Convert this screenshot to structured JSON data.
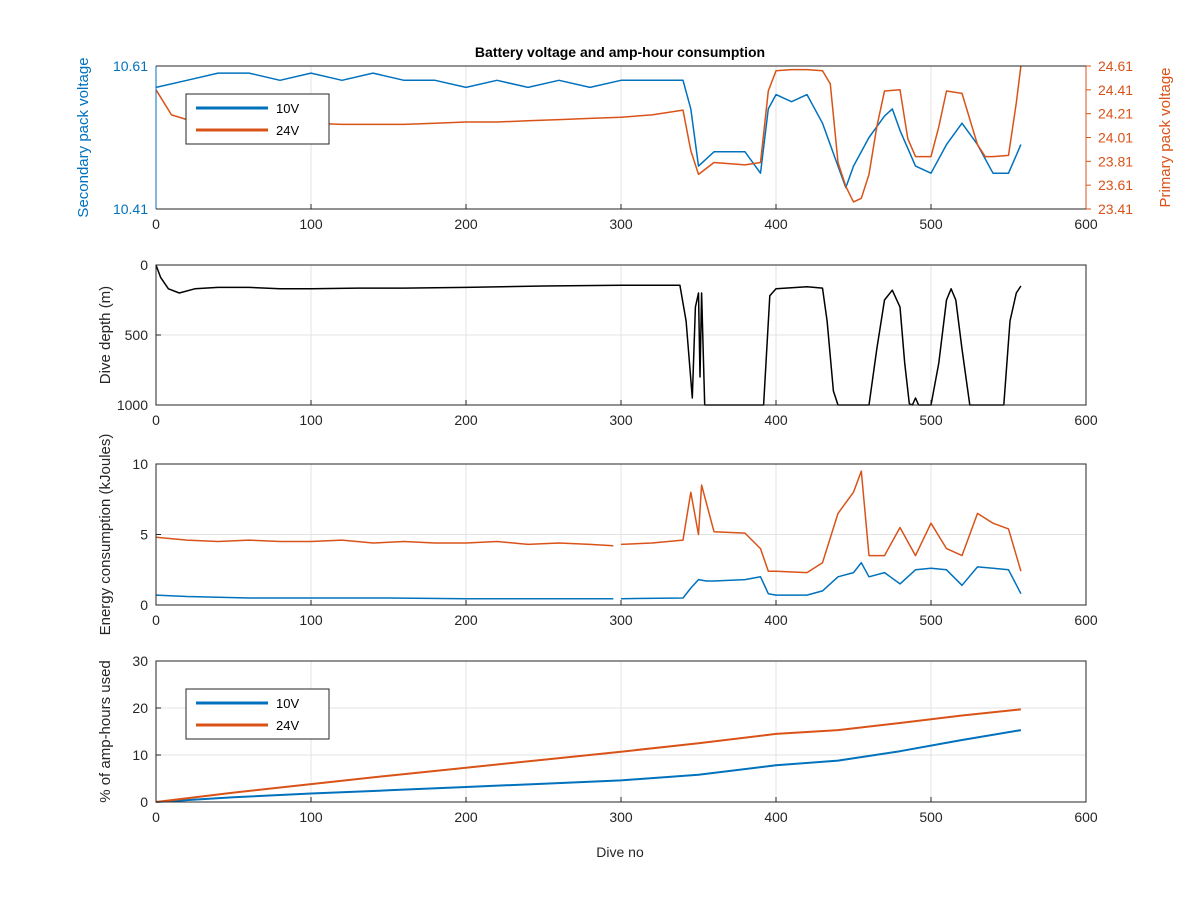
{
  "figure": {
    "title": "Battery voltage and amp-hour consumption",
    "xlabel": "Dive no"
  },
  "colors": {
    "blue": "#0072BD",
    "orange": "#D95319",
    "black": "#000000",
    "grid": "#e3e3e3"
  },
  "chart_data": [
    {
      "type": "line",
      "title": "Battery voltage and amp-hour consumption",
      "xlim": [
        0,
        600
      ],
      "xticks": [
        "0",
        "100",
        "200",
        "300",
        "400",
        "500",
        "600"
      ],
      "left_axis": {
        "label": "Secondary pack voltage",
        "ylim": [
          10.41,
          10.61
        ],
        "ticks": [
          "10.41",
          "10.61"
        ],
        "color": "#0072BD"
      },
      "right_axis": {
        "label": "Primary pack voltage",
        "ylim": [
          23.41,
          24.61
        ],
        "ticks": [
          "23.41",
          "23.61",
          "23.81",
          "24.01",
          "24.21",
          "24.41",
          "24.61"
        ],
        "color": "#D95319"
      },
      "legend": {
        "location": "top-left",
        "entries": [
          "10V",
          "24V"
        ]
      },
      "series": [
        {
          "name": "10V",
          "axis": "left",
          "color": "#0072BD",
          "x": [
            0,
            20,
            40,
            60,
            80,
            100,
            120,
            140,
            160,
            180,
            200,
            220,
            240,
            260,
            280,
            300,
            320,
            340,
            345,
            350,
            360,
            380,
            390,
            395,
            400,
            410,
            420,
            430,
            440,
            445,
            450,
            460,
            470,
            475,
            480,
            490,
            500,
            510,
            520,
            530,
            540,
            550,
            558
          ],
          "y": [
            10.58,
            10.59,
            10.6,
            10.6,
            10.59,
            10.6,
            10.59,
            10.6,
            10.59,
            10.59,
            10.58,
            10.59,
            10.58,
            10.59,
            10.58,
            10.59,
            10.59,
            10.59,
            10.55,
            10.47,
            10.49,
            10.49,
            10.46,
            10.55,
            10.57,
            10.56,
            10.57,
            10.53,
            10.47,
            10.44,
            10.47,
            10.51,
            10.54,
            10.55,
            10.52,
            10.47,
            10.46,
            10.5,
            10.53,
            10.5,
            10.46,
            10.46,
            10.5
          ]
        },
        {
          "name": "24V",
          "axis": "right",
          "color": "#D95319",
          "x": [
            0,
            10,
            20,
            40,
            60,
            80,
            100,
            120,
            140,
            160,
            180,
            200,
            220,
            240,
            260,
            280,
            300,
            320,
            340,
            345,
            350,
            360,
            380,
            390,
            395,
            400,
            410,
            420,
            430,
            435,
            440,
            445,
            450,
            455,
            460,
            465,
            470,
            480,
            485,
            490,
            500,
            505,
            510,
            520,
            530,
            535,
            540,
            550,
            555,
            558
          ],
          "y": [
            24.41,
            24.2,
            24.16,
            24.14,
            24.15,
            24.13,
            24.13,
            24.12,
            24.12,
            24.12,
            24.13,
            24.14,
            24.14,
            24.15,
            24.16,
            24.17,
            24.18,
            24.2,
            24.24,
            23.9,
            23.7,
            23.8,
            23.78,
            23.8,
            24.4,
            24.57,
            24.58,
            24.58,
            24.57,
            24.46,
            23.8,
            23.6,
            23.47,
            23.5,
            23.7,
            24.1,
            24.4,
            24.41,
            24.0,
            23.85,
            23.85,
            24.1,
            24.4,
            24.38,
            23.95,
            23.85,
            23.85,
            23.86,
            24.3,
            24.61
          ]
        }
      ]
    },
    {
      "type": "line",
      "ylabel": "Dive depth (m)",
      "xlim": [
        0,
        600
      ],
      "ylim": [
        0,
        1000
      ],
      "y_reversed": true,
      "xticks": [
        "0",
        "100",
        "200",
        "300",
        "400",
        "500",
        "600"
      ],
      "yticks": [
        "0",
        "500",
        "1000"
      ],
      "series": [
        {
          "color": "#000000",
          "x": [
            0,
            3,
            8,
            15,
            25,
            40,
            60,
            80,
            100,
            130,
            160,
            200,
            250,
            300,
            338,
            342,
            346,
            348,
            350,
            351,
            352,
            354,
            356,
            380,
            392,
            396,
            400,
            420,
            430,
            433,
            437,
            440,
            460,
            465,
            470,
            475,
            480,
            483,
            486,
            488,
            490,
            492,
            500,
            505,
            510,
            513,
            516,
            520,
            525,
            528,
            531,
            547,
            551,
            555,
            558
          ],
          "y": [
            0,
            90,
            170,
            200,
            170,
            160,
            160,
            170,
            170,
            165,
            165,
            160,
            150,
            145,
            145,
            400,
            950,
            300,
            200,
            800,
            200,
            1000,
            1000,
            1000,
            1000,
            220,
            170,
            155,
            165,
            400,
            900,
            1000,
            1000,
            600,
            250,
            180,
            300,
            700,
            990,
            1000,
            950,
            1000,
            1000,
            700,
            250,
            170,
            250,
            600,
            1000,
            1000,
            1000,
            1000,
            400,
            200,
            150
          ]
        }
      ]
    },
    {
      "type": "line",
      "ylabel": "Energy consumption (kJoules)",
      "xlim": [
        0,
        600
      ],
      "ylim": [
        0,
        10
      ],
      "xticks": [
        "0",
        "100",
        "200",
        "300",
        "400",
        "500",
        "600"
      ],
      "yticks": [
        "0",
        "5",
        "10"
      ],
      "series": [
        {
          "color": "#D95319",
          "x": [
            0,
            20,
            40,
            60,
            80,
            100,
            120,
            140,
            160,
            180,
            200,
            220,
            240,
            260,
            280,
            295,
            null,
            300,
            320,
            340,
            345,
            350,
            352,
            360,
            380,
            390,
            395,
            400,
            420,
            430,
            440,
            450,
            455,
            460,
            470,
            480,
            490,
            500,
            510,
            520,
            530,
            540,
            550,
            558
          ],
          "y": [
            4.8,
            4.6,
            4.5,
            4.6,
            4.5,
            4.5,
            4.6,
            4.4,
            4.5,
            4.4,
            4.4,
            4.5,
            4.3,
            4.4,
            4.3,
            4.2,
            null,
            4.3,
            4.4,
            4.6,
            8.0,
            5.0,
            8.5,
            5.2,
            5.1,
            4.0,
            2.4,
            2.4,
            2.3,
            3.0,
            6.5,
            8.0,
            9.5,
            3.5,
            3.5,
            5.5,
            3.5,
            5.8,
            4.0,
            3.5,
            6.5,
            5.8,
            5.4,
            2.4
          ]
        },
        {
          "color": "#0072BD",
          "x": [
            0,
            20,
            40,
            60,
            80,
            100,
            150,
            200,
            250,
            295,
            null,
            300,
            340,
            345,
            350,
            355,
            360,
            380,
            390,
            395,
            400,
            420,
            430,
            440,
            450,
            455,
            460,
            470,
            480,
            490,
            500,
            510,
            520,
            530,
            540,
            550,
            558
          ],
          "y": [
            0.7,
            0.6,
            0.55,
            0.5,
            0.5,
            0.5,
            0.5,
            0.45,
            0.45,
            0.45,
            null,
            0.45,
            0.5,
            1.2,
            1.8,
            1.7,
            1.7,
            1.8,
            2.0,
            0.8,
            0.7,
            0.7,
            1.0,
            2.0,
            2.3,
            3.0,
            2.0,
            2.3,
            1.5,
            2.5,
            2.6,
            2.5,
            1.4,
            2.7,
            2.6,
            2.5,
            0.8
          ]
        }
      ]
    },
    {
      "type": "line",
      "ylabel": "% of amp-hours used",
      "xlabel": "Dive no",
      "xlim": [
        0,
        600
      ],
      "ylim": [
        0,
        30
      ],
      "xticks": [
        "0",
        "100",
        "200",
        "300",
        "400",
        "500",
        "600"
      ],
      "yticks": [
        "0",
        "10",
        "20",
        "30"
      ],
      "legend": {
        "location": "top-left",
        "entries": [
          "10V",
          "24V"
        ]
      },
      "series": [
        {
          "name": "10V",
          "color": "#0072BD",
          "x": [
            0,
            50,
            100,
            150,
            200,
            250,
            300,
            350,
            400,
            440,
            480,
            520,
            558
          ],
          "y": [
            0,
            1.0,
            1.8,
            2.5,
            3.2,
            3.9,
            4.6,
            5.8,
            7.8,
            8.8,
            10.8,
            13.2,
            15.3
          ]
        },
        {
          "name": "24V",
          "color": "#D95319",
          "x": [
            0,
            50,
            100,
            150,
            200,
            250,
            300,
            350,
            400,
            440,
            480,
            520,
            558
          ],
          "y": [
            0,
            2.0,
            3.8,
            5.6,
            7.3,
            9.0,
            10.7,
            12.5,
            14.5,
            15.3,
            16.8,
            18.4,
            19.7
          ]
        }
      ]
    }
  ]
}
